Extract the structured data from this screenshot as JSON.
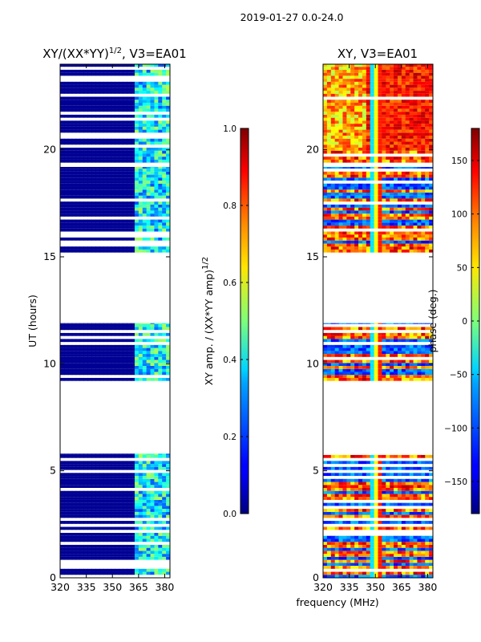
{
  "figure": {
    "suptitle": "2019-01-27 0.0-24.0",
    "xlabel_shared": "frequency (MHz)"
  },
  "chart_data": [
    {
      "type": "heatmap",
      "id": "amplitude",
      "title_main": "XY/(XX*YY)",
      "title_exp": "1/2",
      "title_tail": ", V3=EA01",
      "ylabel": "UT (hours)",
      "xlim": [
        320,
        383
      ],
      "ylim": [
        0,
        24
      ],
      "xticks": [
        "320",
        "335",
        "350",
        "365",
        "380"
      ],
      "xtick_values": [
        320,
        335,
        350,
        365,
        380
      ],
      "yticks": [
        "0",
        "5",
        "10",
        "15",
        "20"
      ],
      "ytick_values": [
        0,
        5,
        10,
        15,
        20
      ],
      "active_freq_range_mhz": [
        363,
        383
      ],
      "data_blocks_hours": [
        [
          0.0,
          5.8
        ],
        [
          9.2,
          11.9
        ],
        [
          15.2,
          19.2
        ],
        [
          19.4,
          24.0
        ]
      ],
      "colorbar": {
        "label_main": "XY amp. / (XX*YY amp)",
        "label_exp": "1/2",
        "ticks": [
          "0.0",
          "0.2",
          "0.4",
          "0.6",
          "0.8",
          "1.0"
        ],
        "tick_values": [
          0.0,
          0.2,
          0.4,
          0.6,
          0.8,
          1.0
        ],
        "range": [
          0,
          1
        ]
      }
    },
    {
      "type": "heatmap",
      "id": "phase",
      "title": "XY, V3=EA01",
      "xlim": [
        320,
        383
      ],
      "ylim": [
        0,
        24
      ],
      "xticks": [
        "320",
        "335",
        "350",
        "365",
        "380"
      ],
      "xtick_values": [
        320,
        335,
        350,
        365,
        380
      ],
      "yticks": [
        "0",
        "5",
        "10",
        "15",
        "20"
      ],
      "ytick_values": [
        0,
        5,
        10,
        15,
        20
      ],
      "data_blocks_hours": [
        [
          0.0,
          5.8
        ],
        [
          9.2,
          11.9
        ],
        [
          15.2,
          19.2
        ],
        [
          19.4,
          24.0
        ]
      ],
      "colorbar": {
        "label": "phase (deg.)",
        "ticks": [
          "−150",
          "−100",
          "−50",
          "0",
          "50",
          "100",
          "150"
        ],
        "tick_values": [
          -150,
          -100,
          -50,
          0,
          50,
          100,
          150
        ],
        "range": [
          -180,
          180
        ]
      }
    }
  ]
}
